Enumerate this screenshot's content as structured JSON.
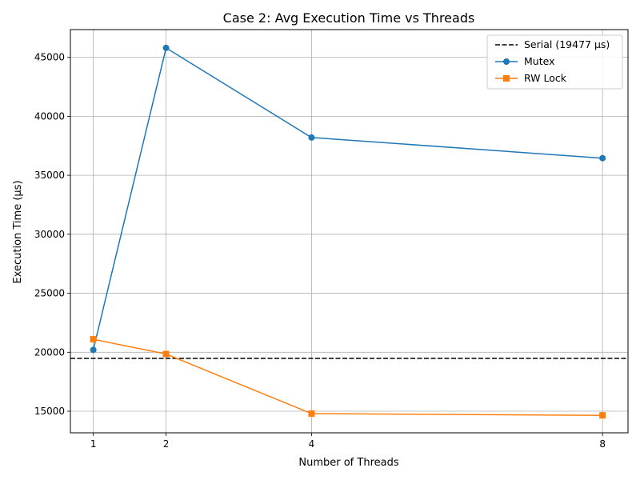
{
  "chart_data": {
    "type": "line",
    "title": "Case 2: Avg Execution Time vs Threads",
    "xlabel": "Number of Threads",
    "ylabel": "Execution Time (µs)",
    "x": [
      1,
      2,
      4,
      8
    ],
    "x_ticks": [
      "1",
      "2",
      "4",
      "8"
    ],
    "xlim": [
      0.685,
      8.35
    ],
    "ylim": [
      13170,
      47350
    ],
    "y_ticks": [
      "15000",
      "20000",
      "25000",
      "30000",
      "35000",
      "40000",
      "45000"
    ],
    "grid": true,
    "legend_position": "top-right",
    "reference_line": {
      "name": "Serial (19477 µs)",
      "value": 19477,
      "color": "#000000",
      "style": "dashed"
    },
    "series": [
      {
        "name": "Mutex",
        "values": [
          20200,
          45800,
          38200,
          36450
        ],
        "color": "#1f77b4",
        "marker": "circle"
      },
      {
        "name": "RW Lock",
        "values": [
          21100,
          19850,
          14800,
          14650
        ],
        "color": "#ff7f0e",
        "marker": "square"
      }
    ]
  }
}
